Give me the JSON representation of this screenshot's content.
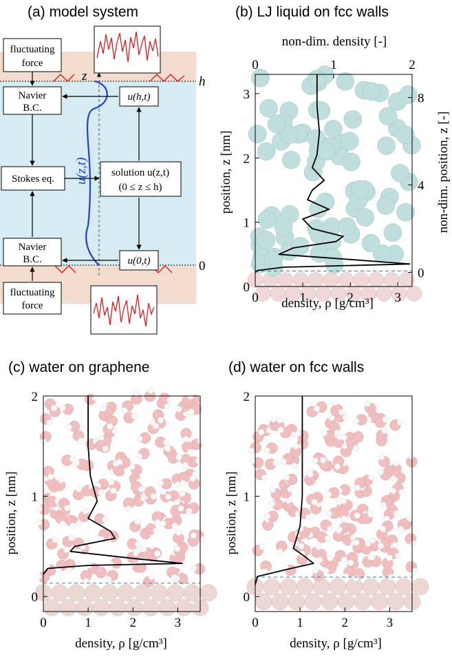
{
  "panels": {
    "a": {
      "title": "(a) model system",
      "boxes": {
        "fluct_top_1": "fluctuating",
        "fluct_top_2": "force",
        "navier_top_1": "Navier",
        "navier_top_2": "B.C.",
        "stokes": "Stokes eq.",
        "navier_bot_1": "Navier",
        "navier_bot_2": "B.C.",
        "fluct_bot_1": "fluctuating",
        "fluct_bot_2": "force",
        "uht": "u(h,t)",
        "u0t": "u(0,t)",
        "solution_1": "solution u(z,t)",
        "solution_2": "(0 ≤ z ≤ h)"
      },
      "labels": {
        "z_axis": "z",
        "h": "h",
        "zero": "0",
        "uzt": "u(z,t)"
      },
      "colors": {
        "wall": "#f2dccd",
        "fluid": "#d6ebf2",
        "profile": "#1f3fd6",
        "noise": "#e01b1b"
      }
    },
    "b": {
      "title": "(b) LJ liquid on fcc walls",
      "xlabel": "density, ρ [g/cm³]",
      "ylabel": "position, z [nm]",
      "top_xlabel": "non-dim. density [-]",
      "right_ylabel": "non-dim. position, z [-]",
      "xticks": [
        "0",
        "1",
        "2",
        "3"
      ],
      "yticks": [
        "0",
        "1",
        "2",
        "3"
      ],
      "top_ticks": [
        "0",
        "1",
        "2"
      ],
      "right_ticks": [
        "0",
        "4",
        "8"
      ],
      "colors": {
        "molecule": "#8fc4c4",
        "wall_atom": "#e5b9b9"
      }
    },
    "c": {
      "title": "(c) water on graphene",
      "xlabel": "density, ρ [g/cm³]",
      "ylabel": "position, z [nm]",
      "xticks": [
        "0",
        "1",
        "2",
        "3"
      ],
      "yticks": [
        "0",
        "1",
        "2"
      ],
      "colors": {
        "oxygen": "#e58a8a",
        "hydrogen": "#f4f4f4",
        "wall_atom": "#e0b7b0"
      }
    },
    "d": {
      "title": "(d) water on fcc walls",
      "xlabel": "density, ρ [g/cm³]",
      "ylabel": "position, z [nm]",
      "xticks": [
        "0",
        "1",
        "2",
        "3"
      ],
      "yticks": [
        "0",
        "1",
        "2"
      ],
      "colors": {
        "oxygen": "#e58a8a",
        "hydrogen": "#f4f4f4",
        "wall_atom": "#e0b7b0"
      }
    }
  },
  "chart_data": [
    {
      "panel": "b",
      "type": "line",
      "xlim": [
        0,
        3.3
      ],
      "ylim": [
        0,
        3.3
      ],
      "x": [
        0.0,
        0.05,
        0.6,
        3.25,
        2.0,
        0.5,
        0.8,
        1.7,
        1.85,
        1.2,
        1.0,
        1.55,
        1.1,
        1.2,
        1.45,
        1.2,
        1.3,
        1.35,
        1.3,
        1.3
      ],
      "y": [
        0.22,
        0.25,
        0.3,
        0.35,
        0.42,
        0.5,
        0.6,
        0.7,
        0.78,
        0.9,
        1.05,
        1.2,
        1.35,
        1.5,
        1.65,
        1.85,
        2.05,
        2.4,
        2.8,
        3.3
      ]
    },
    {
      "panel": "c",
      "type": "line",
      "xlim": [
        0,
        3.5
      ],
      "ylim": [
        -0.15,
        2.0
      ],
      "x": [
        0.0,
        0.1,
        1.0,
        3.1,
        2.0,
        0.6,
        0.7,
        1.6,
        1.5,
        1.0,
        1.2,
        1.05,
        1.0,
        1.0
      ],
      "y": [
        0.22,
        0.28,
        0.31,
        0.33,
        0.38,
        0.45,
        0.5,
        0.58,
        0.65,
        0.78,
        0.95,
        1.2,
        1.5,
        2.0
      ]
    },
    {
      "panel": "d",
      "type": "line",
      "xlim": [
        0,
        3.5
      ],
      "ylim": [
        -0.15,
        2.0
      ],
      "x": [
        0.0,
        0.05,
        0.8,
        1.3,
        1.1,
        0.85,
        0.9,
        1.0,
        1.05,
        1.05,
        1.05
      ],
      "y": [
        0.12,
        0.2,
        0.28,
        0.33,
        0.4,
        0.48,
        0.55,
        0.7,
        1.0,
        1.5,
        2.0
      ]
    }
  ]
}
